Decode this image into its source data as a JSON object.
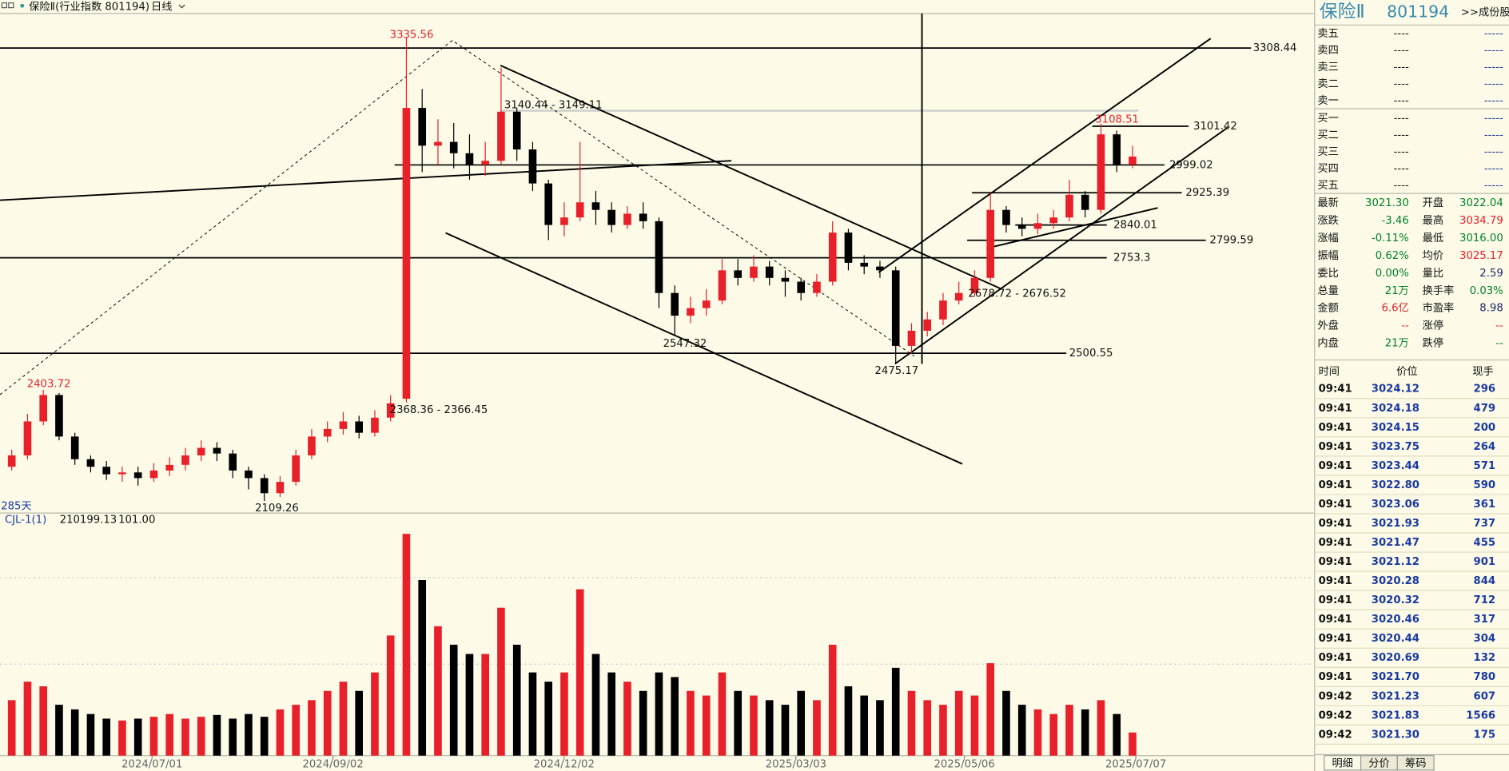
{
  "header": {
    "title": "保险Ⅱ(行业指数 801194)",
    "period": "日线"
  },
  "chart_data": {
    "type": "candlestick",
    "xlim": [
      0,
      72
    ],
    "xticks": [
      {
        "value": 9.39,
        "label": "2024/07/01"
      },
      {
        "value": 20.85,
        "label": "2024/09/02"
      },
      {
        "value": 35.49,
        "label": "2024/12/02"
      },
      {
        "value": 50.18,
        "label": "2025/03/03"
      },
      {
        "value": 60.85,
        "label": "2025/05/06"
      },
      {
        "value": 71.71,
        "label": "2025/07/07"
      }
    ],
    "ylim": [
      2080,
      3400
    ],
    "up_color": "#e8202a",
    "down_color": "#000000",
    "open": [
      2200,
      2230,
      2320,
      2390,
      2280,
      2220,
      2200,
      2180,
      2185,
      2170,
      2190,
      2205,
      2230,
      2250,
      2235,
      2190,
      2170,
      2130,
      2160,
      2230,
      2280,
      2300,
      2320,
      2290,
      2330,
      2380,
      3150,
      3050,
      3060,
      3030,
      3000,
      3010,
      3140,
      3040,
      2950,
      2840,
      2860,
      2900,
      2880,
      2840,
      2870,
      2850,
      2660,
      2600,
      2620,
      2640,
      2720,
      2700,
      2730,
      2700,
      2690,
      2660,
      2690,
      2820,
      2740,
      2730,
      2720,
      2520,
      2560,
      2590,
      2640,
      2660,
      2700,
      2880,
      2840,
      2830,
      2845,
      2860,
      2920,
      2880,
      3080,
      3000
    ],
    "high": [
      2245,
      2340,
      2403.72,
      2395,
      2290,
      2230,
      2215,
      2200,
      2200,
      2210,
      2225,
      2250,
      2270,
      2265,
      2245,
      2200,
      2180,
      2175,
      2245,
      2300,
      2320,
      2345,
      2335,
      2350,
      2390,
      3335.56,
      3200,
      3120,
      3110,
      3080,
      3060,
      3257,
      3150,
      3060,
      2960,
      2900,
      3060,
      2930,
      2900,
      2890,
      2900,
      2860,
      2680,
      2650,
      2670,
      2750,
      2750,
      2760,
      2745,
      2720,
      2700,
      2710,
      2850,
      2830,
      2760,
      2745,
      2730,
      2580,
      2610,
      2660,
      2690,
      2720,
      2925,
      2890,
      2860,
      2870,
      2880,
      2960,
      2930,
      3108.51,
      3090,
      3050
    ],
    "low": [
      2190,
      2220,
      2310,
      2270,
      2205,
      2185,
      2165,
      2160,
      2150,
      2160,
      2175,
      2190,
      2215,
      2215,
      2170,
      2140,
      2109.26,
      2120,
      2150,
      2220,
      2265,
      2285,
      2275,
      2280,
      2320,
      2370,
      2980,
      3000,
      2990,
      2960,
      2970,
      3000,
      3010,
      2930,
      2800,
      2810,
      2850,
      2840,
      2820,
      2830,
      2830,
      2620,
      2547.32,
      2580,
      2600,
      2630,
      2680,
      2690,
      2680,
      2650,
      2640,
      2650,
      2680,
      2720,
      2710,
      2700,
      2475.17,
      2500,
      2545,
      2575,
      2630,
      2650,
      2690,
      2820,
      2810,
      2815,
      2830,
      2850,
      2860,
      2870,
      2980,
      2990
    ],
    "close": [
      2230,
      2320,
      2390,
      2280,
      2220,
      2200,
      2180,
      2185,
      2170,
      2190,
      2205,
      2230,
      2250,
      2235,
      2190,
      2170,
      2130,
      2160,
      2230,
      2280,
      2300,
      2320,
      2290,
      2330,
      2368,
      3150,
      3050,
      3060,
      3030,
      3000,
      3010,
      3140,
      3040,
      2950,
      2840,
      2860,
      2900,
      2880,
      2840,
      2870,
      2850,
      2660,
      2600,
      2620,
      2640,
      2720,
      2700,
      2730,
      2700,
      2690,
      2660,
      2690,
      2820,
      2740,
      2730,
      2720,
      2520,
      2560,
      2590,
      2640,
      2660,
      2700,
      2880,
      2840,
      2830,
      2845,
      2860,
      2920,
      2880,
      3080,
      3000,
      3021.3
    ],
    "hlines": [
      3308.44,
      2999.02,
      2753.3,
      2500.55,
      3101.42,
      2925.39,
      2840.01,
      2799.59
    ],
    "annotations": [
      "3335.56",
      "2403.72",
      "2109.26",
      "2547.32",
      "2475.17",
      "3108.51",
      "3140.44 - 3149.11",
      "2368.36 - 2366.45",
      "2678.72 - 2676.52"
    ],
    "days": "285天",
    "volume_panel": {
      "label": "CJL-1(1)",
      "readouts": [
        "210199.13",
        "101.00"
      ],
      "ylim": [
        0,
        250
      ],
      "values": [
        60,
        80,
        75,
        55,
        50,
        45,
        40,
        38,
        40,
        42,
        45,
        40,
        42,
        44,
        40,
        45,
        42,
        50,
        55,
        60,
        70,
        80,
        70,
        90,
        130,
        240,
        190,
        140,
        120,
        110,
        110,
        160,
        120,
        90,
        80,
        90,
        180,
        110,
        90,
        80,
        70,
        90,
        85,
        70,
        65,
        90,
        70,
        65,
        60,
        55,
        70,
        60,
        120,
        75,
        65,
        60,
        95,
        70,
        60,
        55,
        70,
        65,
        100,
        70,
        55,
        50,
        45,
        55,
        50,
        60,
        45,
        25
      ]
    }
  },
  "quote": {
    "name": "保险Ⅱ",
    "code": "801194",
    "link": ">>成份股",
    "book": [
      [
        "卖五",
        "----",
        "-----"
      ],
      [
        "卖四",
        "----",
        "-----"
      ],
      [
        "卖三",
        "----",
        "-----"
      ],
      [
        "卖二",
        "----",
        "-----"
      ],
      [
        "卖一",
        "----",
        "-----"
      ],
      [
        "买一",
        "----",
        "-----"
      ],
      [
        "买二",
        "----",
        "-----"
      ],
      [
        "买三",
        "----",
        "-----"
      ],
      [
        "买四",
        "----",
        "-----"
      ],
      [
        "买五",
        "----",
        "-----"
      ]
    ],
    "stats": [
      {
        "label": "最新",
        "value": "3021.30",
        "color": "#00802a"
      },
      {
        "label": "开盘",
        "value": "3022.04",
        "color": "#00802a"
      },
      {
        "label": "涨跌",
        "value": "-3.46",
        "color": "#00802a"
      },
      {
        "label": "最高",
        "value": "3034.79",
        "color": "#e8202a"
      },
      {
        "label": "涨幅",
        "value": "-0.11%",
        "color": "#00802a"
      },
      {
        "label": "最低",
        "value": "3016.00",
        "color": "#00802a"
      },
      {
        "label": "振幅",
        "value": "0.62%",
        "color": "#00802a"
      },
      {
        "label": "均价",
        "value": "3025.17",
        "color": "#e8202a"
      },
      {
        "label": "委比",
        "value": "0.00%",
        "color": "#00802a"
      },
      {
        "label": "量比",
        "value": "2.59",
        "color": "#1a2a6a"
      },
      {
        "label": "总量",
        "value": "21万",
        "color": "#00802a"
      },
      {
        "label": "换手率",
        "value": "0.03%",
        "color": "#00802a"
      },
      {
        "label": "金额",
        "value": "6.6亿",
        "color": "#e8202a"
      },
      {
        "label": "市盈率",
        "value": "8.98",
        "color": "#1a2a6a"
      },
      {
        "label": "外盘",
        "value": "--",
        "color": "#e8202a"
      },
      {
        "label": "涨停",
        "value": "--",
        "color": "#e8202a"
      },
      {
        "label": "内盘",
        "value": "21万",
        "color": "#00802a"
      },
      {
        "label": "跌停",
        "value": "--",
        "color": "#00802a"
      }
    ],
    "ticks": {
      "header": [
        "时间",
        "价位",
        "现手"
      ],
      "rows": [
        [
          "09:41",
          "3024.12",
          "296"
        ],
        [
          "09:41",
          "3024.18",
          "479"
        ],
        [
          "09:41",
          "3024.15",
          "200"
        ],
        [
          "09:41",
          "3023.75",
          "264"
        ],
        [
          "09:41",
          "3023.44",
          "571"
        ],
        [
          "09:41",
          "3022.80",
          "590"
        ],
        [
          "09:41",
          "3023.06",
          "361"
        ],
        [
          "09:41",
          "3021.93",
          "737"
        ],
        [
          "09:41",
          "3021.47",
          "455"
        ],
        [
          "09:41",
          "3021.12",
          "901"
        ],
        [
          "09:41",
          "3020.28",
          "844"
        ],
        [
          "09:41",
          "3020.32",
          "712"
        ],
        [
          "09:41",
          "3020.46",
          "317"
        ],
        [
          "09:41",
          "3020.44",
          "304"
        ],
        [
          "09:41",
          "3020.69",
          "132"
        ],
        [
          "09:41",
          "3021.70",
          "780"
        ],
        [
          "09:42",
          "3021.23",
          "607"
        ],
        [
          "09:42",
          "3021.83",
          "1566"
        ],
        [
          "09:42",
          "3021.30",
          "175"
        ]
      ]
    },
    "tabs": [
      "明细",
      "分价",
      "筹码"
    ]
  }
}
